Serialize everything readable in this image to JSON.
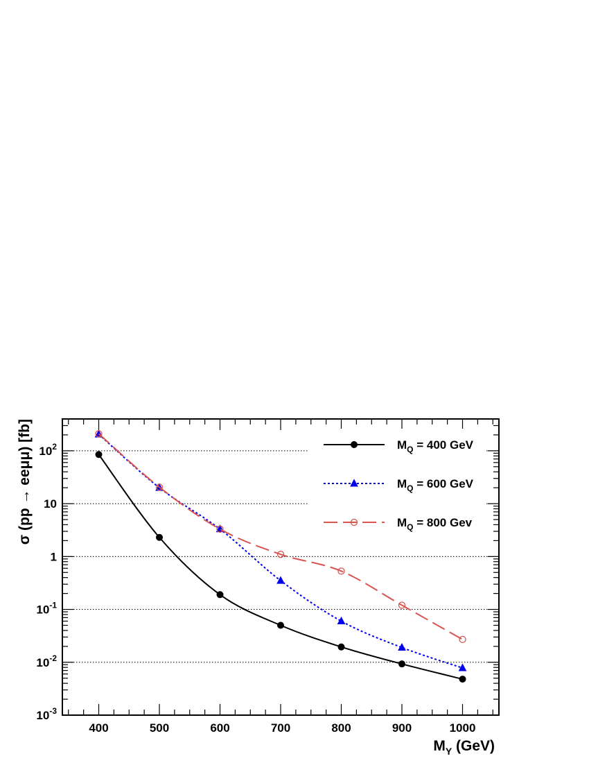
{
  "chart_data": {
    "type": "line",
    "x_scale": "linear",
    "y_scale": "log",
    "xlim": [
      340,
      1060
    ],
    "ylim": [
      0.001,
      400
    ],
    "x_ticks": [
      400,
      500,
      600,
      700,
      800,
      900,
      1000
    ],
    "x_tick_labels": [
      "400",
      "500",
      "600",
      "700",
      "800",
      "900",
      "1000"
    ],
    "y_ticks": [
      {
        "value": 0.001,
        "base": "10",
        "exp": "-3"
      },
      {
        "value": 0.01,
        "base": "10",
        "exp": "-2"
      },
      {
        "value": 0.1,
        "base": "10",
        "exp": "-1"
      },
      {
        "value": 1,
        "base": "1",
        "exp": ""
      },
      {
        "value": 10,
        "base": "10",
        "exp": ""
      },
      {
        "value": 100,
        "base": "10",
        "exp": "2"
      }
    ],
    "y_gridlines": [
      0.01,
      0.1,
      1,
      10,
      100
    ],
    "grid": "horizontal dotted",
    "legend_position": "top-right",
    "xlabel": {
      "main": "M",
      "sub": "Y",
      "rest": " (GeV)"
    },
    "ylabel": {
      "text": "σ (pp → eeμμ) [fb]"
    },
    "x": [
      400,
      500,
      600,
      700,
      800,
      900,
      1000
    ],
    "series": [
      {
        "name": "M",
        "name_sub": "Q",
        "name_rest": " = 400 GeV",
        "color": "#000000",
        "dash": "solid",
        "marker": "filled-circle",
        "values": [
          85,
          2.3,
          0.19,
          0.05,
          0.0195,
          0.0093,
          0.0048
        ]
      },
      {
        "name": "M",
        "name_sub": "Q",
        "name_rest": " = 600 GeV",
        "color": "#0000ee",
        "dash": "dotted",
        "marker": "filled-triangle",
        "values": [
          205,
          20,
          3.3,
          0.35,
          0.06,
          0.019,
          0.0078
        ]
      },
      {
        "name": "M",
        "name_sub": "Q",
        "name_rest": " = 800 Gev",
        "color": "#d9534f",
        "dash": "long-dash",
        "marker": "open-circle",
        "values": [
          210,
          20.5,
          3.3,
          1.1,
          0.53,
          0.12,
          0.027
        ]
      }
    ]
  }
}
